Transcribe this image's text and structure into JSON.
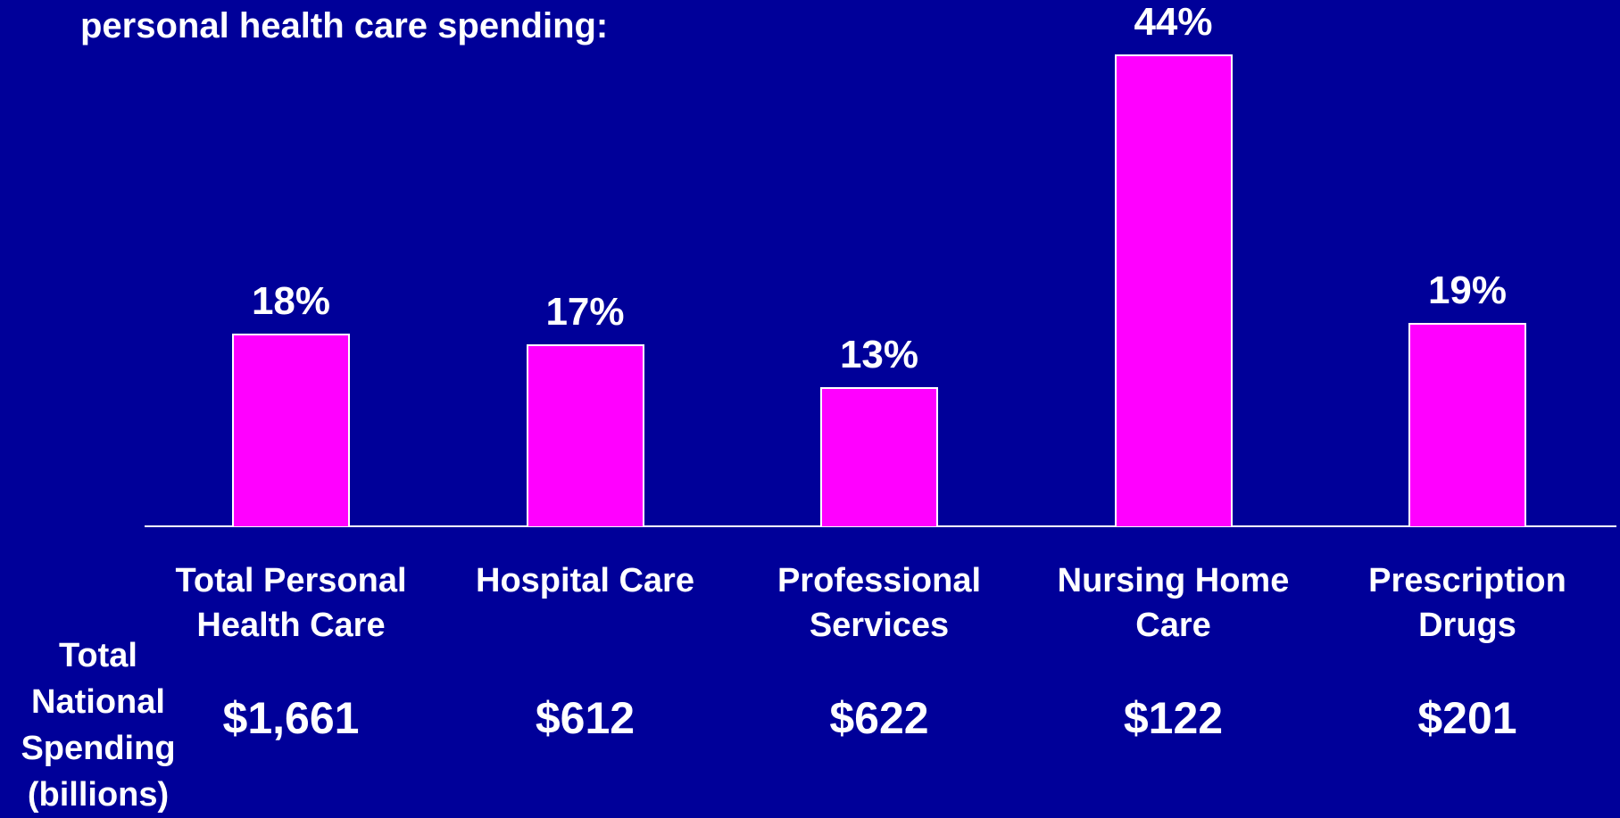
{
  "chart_data": {
    "type": "bar",
    "title": "personal health care spending:",
    "categories": [
      "Total Personal Health Care",
      "Hospital Care",
      "Professional Services",
      "Nursing Home Care",
      "Prescription Drugs"
    ],
    "values": [
      18,
      17,
      13,
      44,
      19
    ],
    "value_labels": [
      "18%",
      "17%",
      "13%",
      "44%",
      "19%"
    ],
    "color": "#ff00ff",
    "spending": {
      "label": "Total National Spending (billions)",
      "values": [
        1661,
        612,
        622,
        122,
        201
      ],
      "value_labels": [
        "$1,661",
        "$612",
        "$622",
        "$122",
        "$201"
      ]
    }
  }
}
